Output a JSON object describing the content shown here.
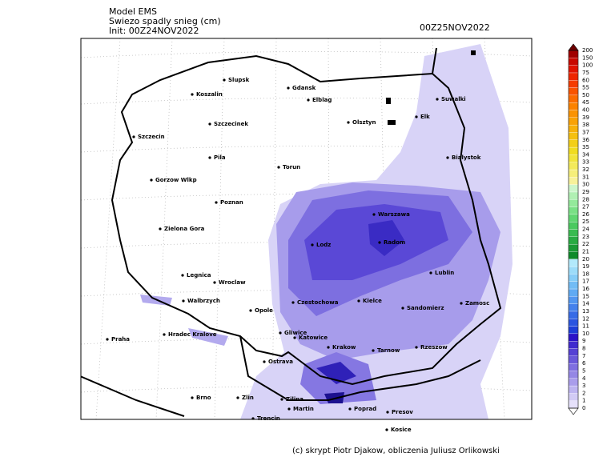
{
  "header": {
    "model": "Model EMS",
    "product": "Swiezo spadly snieg (cm)",
    "init": "Init: 00Z24NOV2022",
    "valid": "00Z25NOV2022"
  },
  "cities": [
    "Slupsk",
    "Koszalin",
    "Gdansk",
    "Elblag",
    "Suwalki",
    "Szczecinek",
    "Olsztyn",
    "Elk",
    "Szczecin",
    "Bialystok",
    "Pila",
    "Torun",
    "Gorzow Wlkp",
    "Poznan",
    "Warszawa",
    "Zielona Gora",
    "Lodz",
    "Radom",
    "Lublin",
    "Legnica",
    "Wroclaw",
    "Czestochowa",
    "Kielce",
    "Sandomierz",
    "Zamosc",
    "Walbrzych",
    "Opole",
    "Hradec Kralove",
    "Gliwice",
    "Katowice",
    "Praha",
    "Krakow",
    "Tarnow",
    "Rzeszow",
    "Ostrava",
    "Brno",
    "Zlin",
    "Zilina",
    "Martin",
    "Poprad",
    "Presov",
    "Trencin",
    "Kosice"
  ],
  "legend": {
    "levels": [
      0,
      1,
      2,
      3,
      4,
      5,
      6,
      7,
      8,
      9,
      10,
      11,
      12,
      13,
      14,
      15,
      16,
      17,
      18,
      19,
      20,
      21,
      22,
      23,
      24,
      25,
      26,
      27,
      28,
      29,
      30,
      31,
      32,
      33,
      34,
      35,
      36,
      37,
      38,
      39,
      40,
      45,
      50,
      55,
      60,
      75,
      100,
      150,
      200
    ],
    "colors": [
      "#e6e1fb",
      "#d2cbf5",
      "#bdb4f0",
      "#a99deb",
      "#9486e5",
      "#7f6fe0",
      "#6a58da",
      "#5541d4",
      "#402ace",
      "#2b13c8",
      "#1d3fd8",
      "#2a55e0",
      "#376be6",
      "#4581ec",
      "#5296f0",
      "#60aaf3",
      "#72bcf5",
      "#86cdf7",
      "#9cdcf9",
      "#b2e9fb",
      "#0e8a2a",
      "#1a9a35",
      "#28ab42",
      "#38bb50",
      "#4ac95f",
      "#60d671",
      "#79e085",
      "#94e99b",
      "#b0f0b3",
      "#ccf6cb",
      "#f7f19a",
      "#f5ee7a",
      "#f3ea5a",
      "#f1e43a",
      "#f0dc20",
      "#f3cf18",
      "#f5c010",
      "#f7b10a",
      "#f9a206",
      "#fa9303",
      "#fb8200",
      "#fb6c00",
      "#f95400",
      "#f53c00",
      "#ee2500",
      "#e01200",
      "#c80800",
      "#a00000"
    ]
  },
  "footer": {
    "credit": "(c) skrypt Piotr Djakow, obliczenia Juliusz Orlikowski"
  }
}
